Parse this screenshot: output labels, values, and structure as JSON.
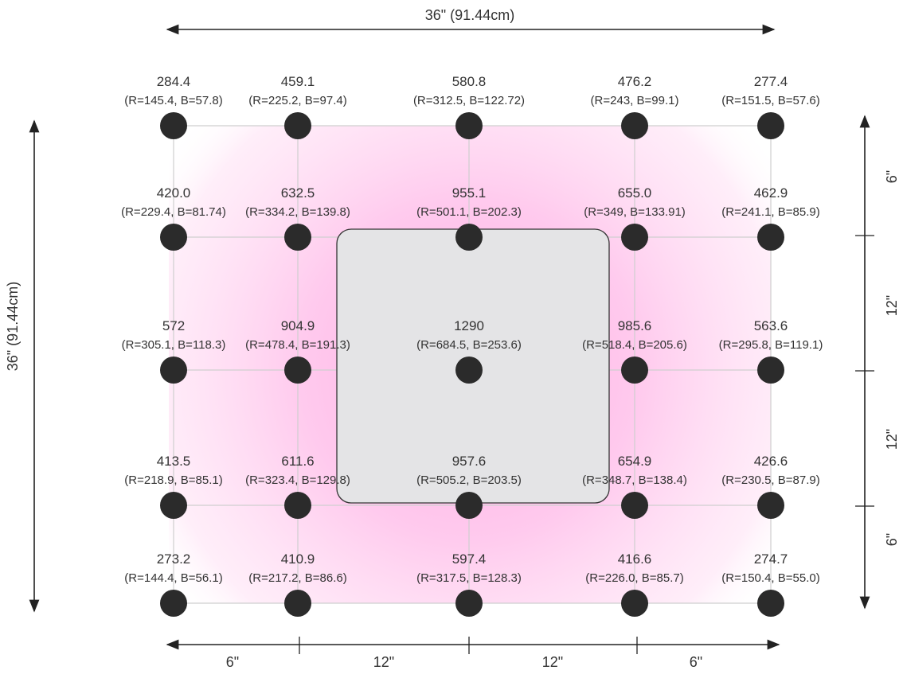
{
  "width_label": "36\" (91.44cm)",
  "height_label": "36\" (91.44cm)",
  "bottom_segments": [
    "6\"",
    "12\"",
    "12\"",
    "6\""
  ],
  "right_segments": [
    "6\"",
    "12\"",
    "12\"",
    "6\""
  ],
  "colors": {
    "dot": "#2b2b2b",
    "heat": "#ff9bdf",
    "panel_fill": "#e4e4e6",
    "panel_stroke": "#333333"
  },
  "rows": [
    [
      {
        "value": "284.4",
        "rb": "(R=145.4, B=57.8)"
      },
      {
        "value": "459.1",
        "rb": "(R=225.2, B=97.4)"
      },
      {
        "value": "580.8",
        "rb": "(R=312.5, B=122.72)"
      },
      {
        "value": "476.2",
        "rb": "(R=243, B=99.1)"
      },
      {
        "value": "277.4",
        "rb": "(R=151.5, B=57.6)"
      }
    ],
    [
      {
        "value": "420.0",
        "rb": "(R=229.4, B=81.74)"
      },
      {
        "value": "632.5",
        "rb": "(R=334.2, B=139.8)"
      },
      {
        "value": "955.1",
        "rb": "(R=501.1, B=202.3)"
      },
      {
        "value": "655.0",
        "rb": "(R=349, B=133.91)"
      },
      {
        "value": "462.9",
        "rb": "(R=241.1, B=85.9)"
      }
    ],
    [
      {
        "value": "572",
        "rb": "(R=305.1, B=118.3)"
      },
      {
        "value": "904.9",
        "rb": "(R=478.4, B=191.3)"
      },
      {
        "value": "1290",
        "rb": "(R=684.5, B=253.6)"
      },
      {
        "value": "985.6",
        "rb": "(R=518.4, B=205.6)"
      },
      {
        "value": "563.6",
        "rb": "(R=295.8, B=119.1)"
      }
    ],
    [
      {
        "value": "413.5",
        "rb": "(R=218.9, B=85.1)"
      },
      {
        "value": "611.6",
        "rb": "(R=323.4, B=129.8)"
      },
      {
        "value": "957.6",
        "rb": "(R=505.2, B=203.5)"
      },
      {
        "value": "654.9",
        "rb": "(R=348.7, B=138.4)"
      },
      {
        "value": "426.6",
        "rb": "(R=230.5, B=87.9)"
      }
    ],
    [
      {
        "value": "273.2",
        "rb": "(R=144.4, B=56.1)"
      },
      {
        "value": "410.9",
        "rb": "(R=217.2, B=86.6)"
      },
      {
        "value": "597.4",
        "rb": "(R=317.5, B=128.3)"
      },
      {
        "value": "416.6",
        "rb": "(R=226.0, B=85.7)"
      },
      {
        "value": "274.7",
        "rb": "(R=150.4, B=55.0)"
      }
    ]
  ]
}
